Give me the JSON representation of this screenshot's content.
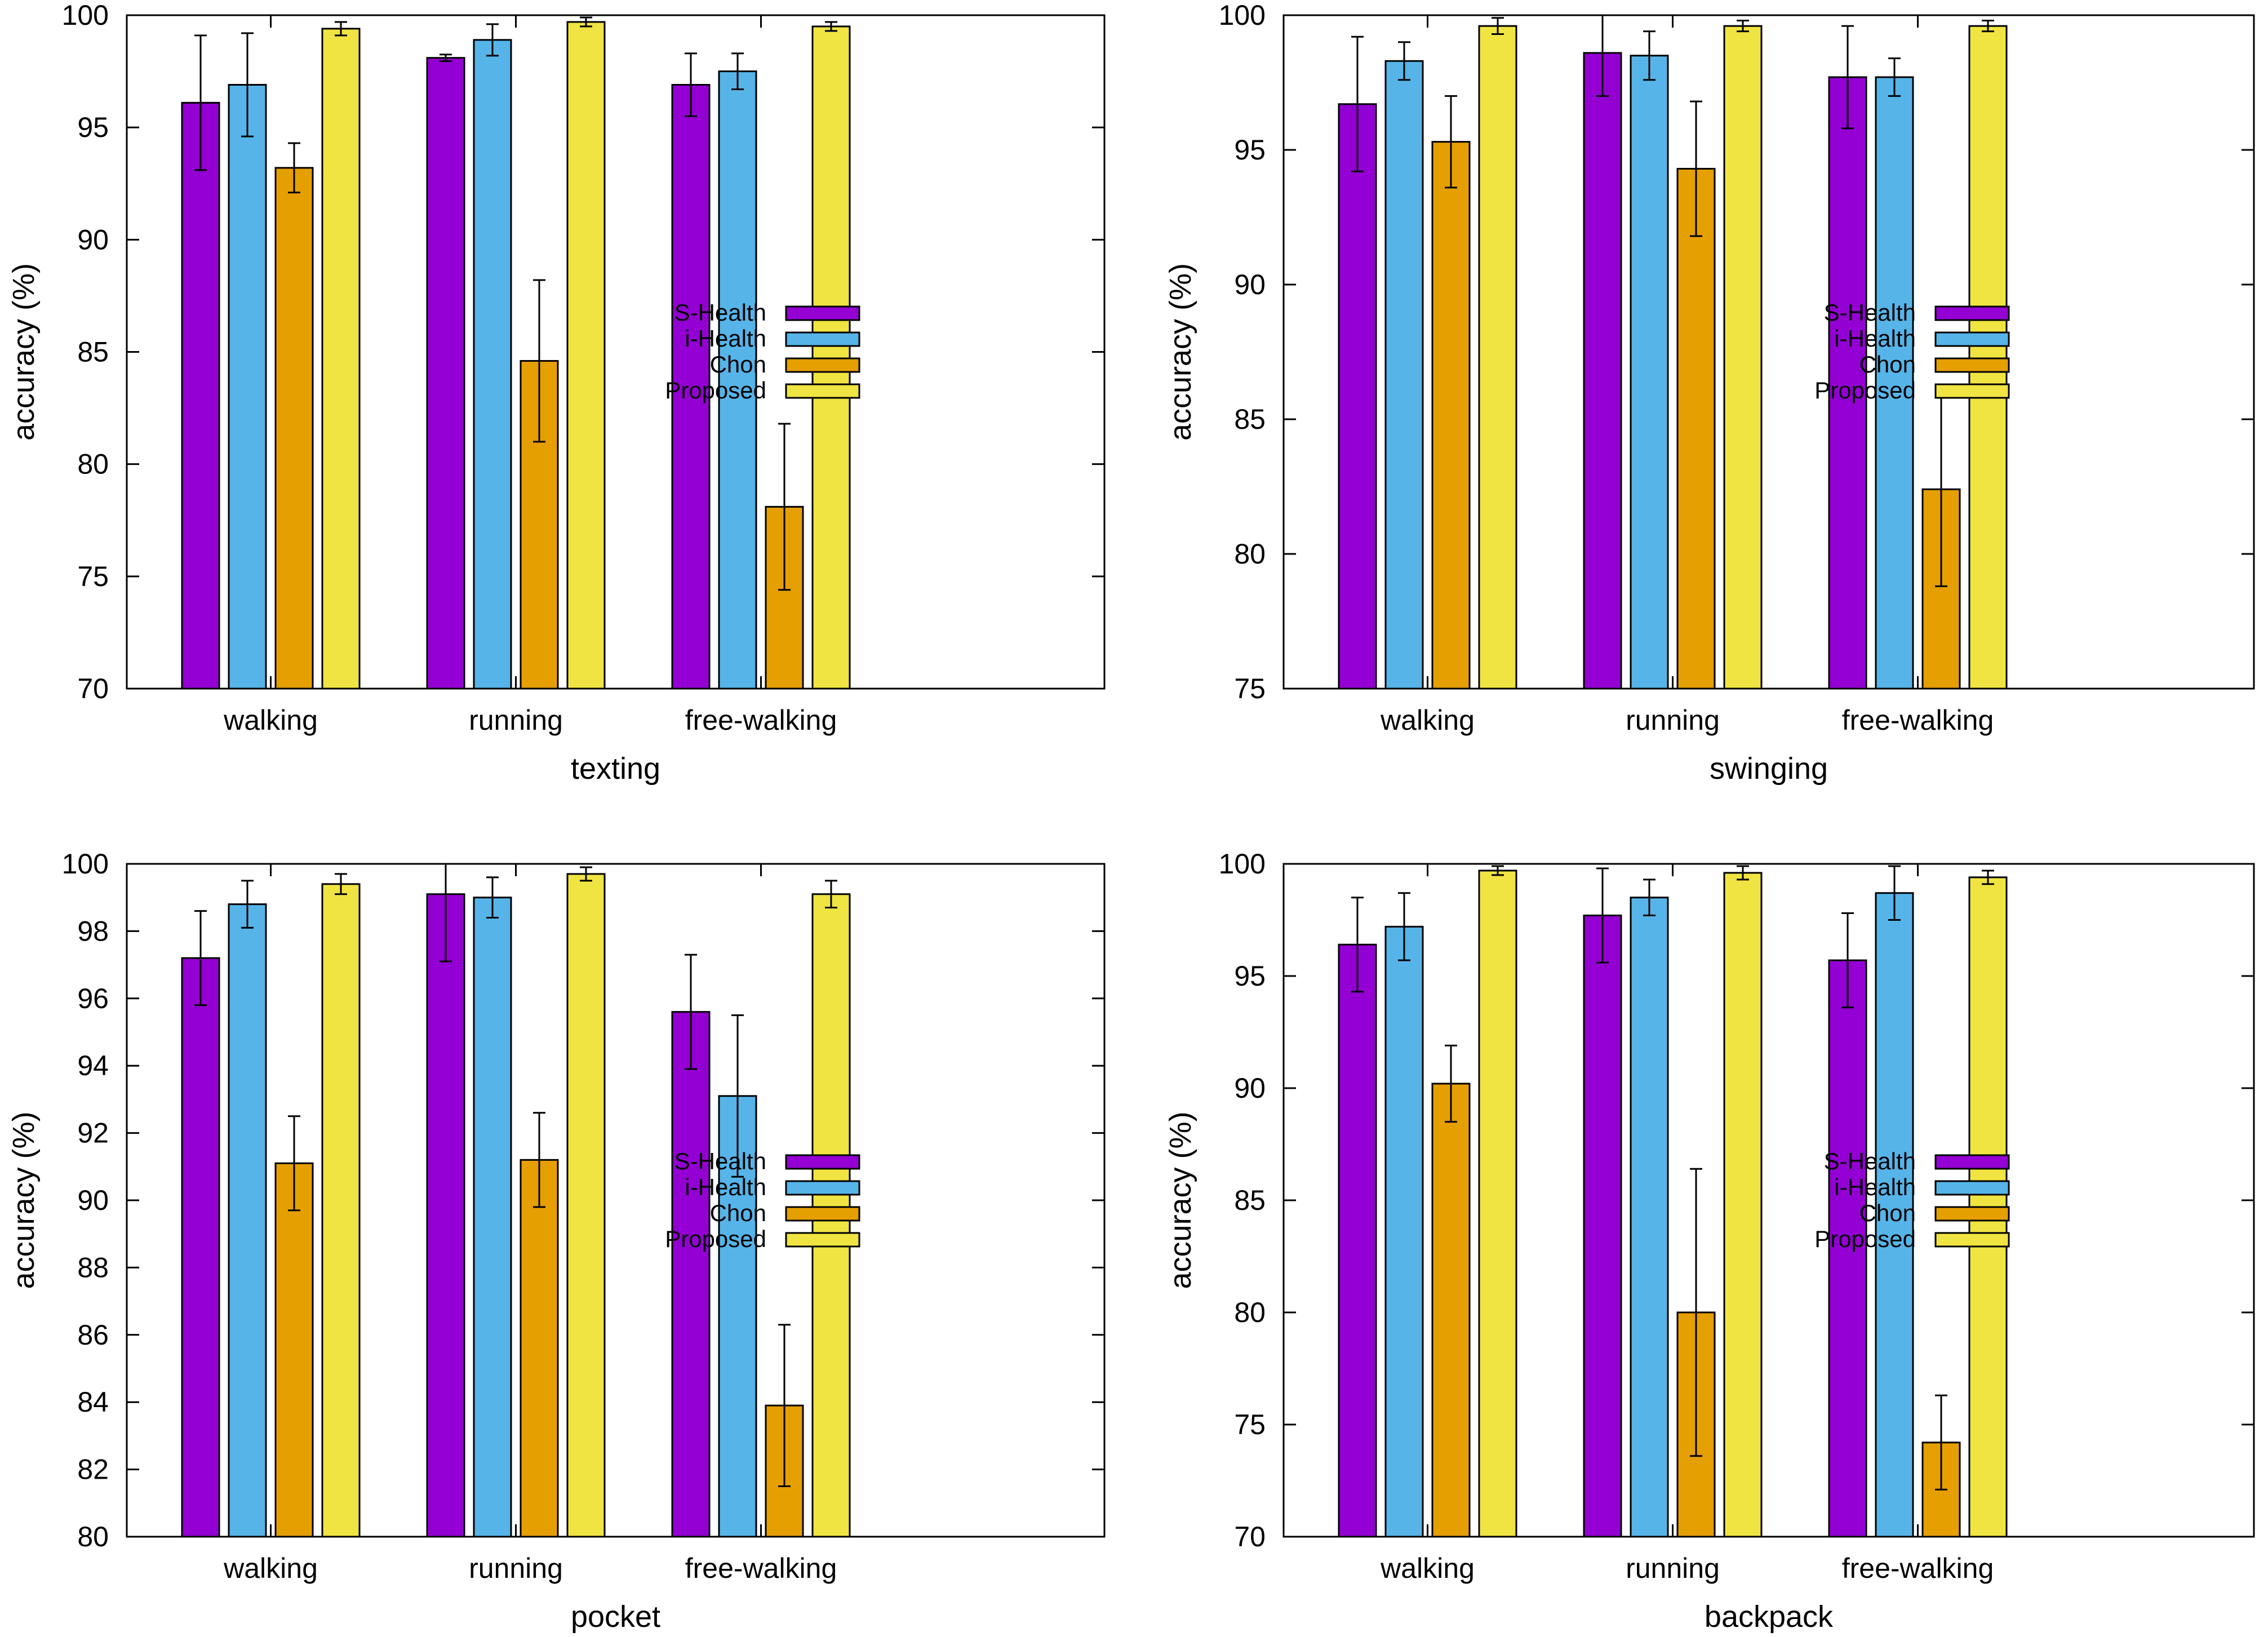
{
  "legend": [
    "S-Health",
    "i-Health",
    "Chon",
    "Proposed"
  ],
  "series_colors": [
    "#9400d3",
    "#56b4e9",
    "#e69f00",
    "#f0e442"
  ],
  "chart_data": [
    {
      "type": "bar",
      "title": "",
      "xlabel": "texting",
      "ylabel": "accuracy (%)",
      "categories": [
        "walking",
        "running",
        "free-walking"
      ],
      "ylim": [
        70,
        100
      ],
      "yticks": [
        70,
        75,
        80,
        85,
        90,
        95,
        100
      ],
      "grid": false,
      "legend_position": "right",
      "series": [
        {
          "name": "S-Health",
          "values": [
            96.1,
            98.1,
            96.9
          ],
          "errors": [
            3.0,
            0.15,
            1.4
          ]
        },
        {
          "name": "i-Health",
          "values": [
            96.9,
            98.9,
            97.5
          ],
          "errors": [
            2.3,
            0.7,
            0.8
          ]
        },
        {
          "name": "Chon",
          "values": [
            93.2,
            84.6,
            78.1
          ],
          "errors": [
            1.1,
            3.6,
            3.7
          ]
        },
        {
          "name": "Proposed",
          "values": [
            99.4,
            99.7,
            99.5
          ],
          "errors": [
            0.3,
            0.2,
            0.2
          ]
        }
      ]
    },
    {
      "type": "bar",
      "title": "",
      "xlabel": "swinging",
      "ylabel": "accuracy (%)",
      "categories": [
        "walking",
        "running",
        "free-walking"
      ],
      "ylim": [
        75,
        100
      ],
      "yticks": [
        75,
        80,
        85,
        90,
        95,
        100
      ],
      "grid": false,
      "legend_position": "right",
      "series": [
        {
          "name": "S-Health",
          "values": [
            96.7,
            98.6,
            97.7
          ],
          "errors": [
            2.5,
            1.6,
            1.9
          ]
        },
        {
          "name": "i-Health",
          "values": [
            98.3,
            98.5,
            97.7
          ],
          "errors": [
            0.7,
            0.9,
            0.7
          ]
        },
        {
          "name": "Chon",
          "values": [
            95.3,
            94.3,
            82.4
          ],
          "errors": [
            1.7,
            2.5,
            3.6
          ]
        },
        {
          "name": "Proposed",
          "values": [
            99.6,
            99.6,
            99.6
          ],
          "errors": [
            0.3,
            0.2,
            0.2
          ]
        }
      ]
    },
    {
      "type": "bar",
      "title": "",
      "xlabel": "pocket",
      "ylabel": "accuracy (%)",
      "categories": [
        "walking",
        "running",
        "free-walking"
      ],
      "ylim": [
        80,
        100
      ],
      "yticks": [
        80,
        82,
        84,
        86,
        88,
        90,
        92,
        94,
        96,
        98,
        100
      ],
      "grid": false,
      "legend_position": "right",
      "series": [
        {
          "name": "S-Health",
          "values": [
            97.2,
            99.1,
            95.6
          ],
          "errors": [
            1.4,
            2.0,
            1.7
          ]
        },
        {
          "name": "i-Health",
          "values": [
            98.8,
            99.0,
            93.1
          ],
          "errors": [
            0.7,
            0.6,
            2.4
          ]
        },
        {
          "name": "Chon",
          "values": [
            91.1,
            91.2,
            83.9
          ],
          "errors": [
            1.4,
            1.4,
            2.4
          ]
        },
        {
          "name": "Proposed",
          "values": [
            99.4,
            99.7,
            99.1
          ],
          "errors": [
            0.3,
            0.2,
            0.4
          ]
        }
      ]
    },
    {
      "type": "bar",
      "title": "",
      "xlabel": "backpack",
      "ylabel": "accuracy (%)",
      "categories": [
        "walking",
        "running",
        "free-walking"
      ],
      "ylim": [
        70,
        100
      ],
      "yticks": [
        70,
        75,
        80,
        85,
        90,
        95,
        100
      ],
      "grid": false,
      "legend_position": "right",
      "series": [
        {
          "name": "S-Health",
          "values": [
            96.4,
            97.7,
            95.7
          ],
          "errors": [
            2.1,
            2.1,
            2.1
          ]
        },
        {
          "name": "i-Health",
          "values": [
            97.2,
            98.5,
            98.7
          ],
          "errors": [
            1.5,
            0.8,
            1.2
          ]
        },
        {
          "name": "Chon",
          "values": [
            90.2,
            80.0,
            74.2
          ],
          "errors": [
            1.7,
            6.4,
            2.1
          ]
        },
        {
          "name": "Proposed",
          "values": [
            99.7,
            99.6,
            99.4
          ],
          "errors": [
            0.2,
            0.3,
            0.3
          ]
        }
      ]
    }
  ]
}
